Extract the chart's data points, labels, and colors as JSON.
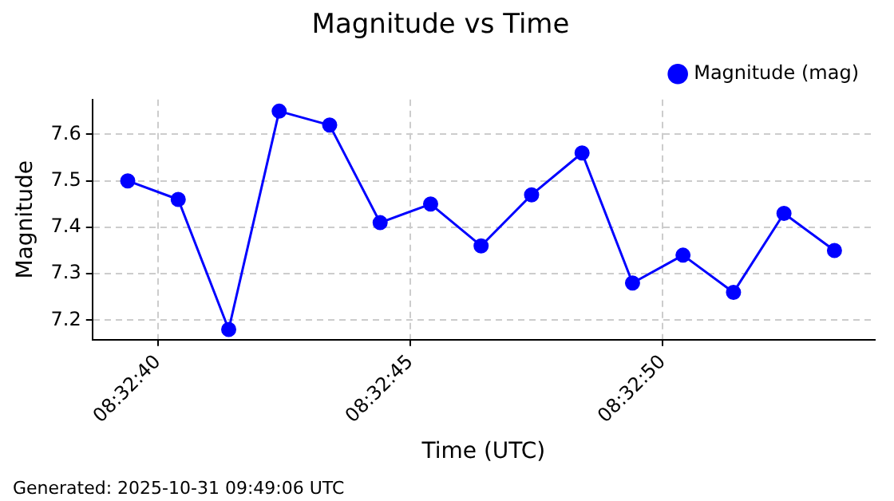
{
  "chart_data": {
    "type": "line",
    "title": "Magnitude vs Time",
    "xlabel": "Time (UTC)",
    "ylabel": "Magnitude",
    "x": [
      "2025-10-31T08:32:39.4",
      "2025-10-31T08:32:40.4",
      "2025-10-31T08:32:41.4",
      "2025-10-31T08:32:42.4",
      "2025-10-31T08:32:43.4",
      "2025-10-31T08:32:44.4",
      "2025-10-31T08:32:45.4",
      "2025-10-31T08:32:46.4",
      "2025-10-31T08:32:47.4",
      "2025-10-31T08:32:48.4",
      "2025-10-31T08:32:49.4",
      "2025-10-31T08:32:50.4",
      "2025-10-31T08:32:51.4",
      "2025-10-31T08:32:52.4",
      "2025-10-31T08:32:53.4"
    ],
    "series": [
      {
        "name": "Magnitude (mag)",
        "color": "#0000ff",
        "values": [
          7.5,
          7.46,
          7.18,
          7.65,
          7.62,
          7.41,
          7.45,
          7.36,
          7.47,
          7.56,
          7.28,
          7.34,
          7.26,
          7.43,
          7.35
        ]
      }
    ],
    "xlim": [
      "2025-10-31T08:32:38.7",
      "2025-10-31T08:32:54.2"
    ],
    "xticks": [
      {
        "value": "2025-10-31T08:32:40",
        "label": "08:32:40"
      },
      {
        "value": "2025-10-31T08:32:45",
        "label": "08:32:45"
      },
      {
        "value": "2025-10-31T08:32:50",
        "label": "08:32:50"
      }
    ],
    "ylim": [
      7.158,
      7.675
    ],
    "yticks": [
      7.2,
      7.3,
      7.4,
      7.5,
      7.6
    ],
    "grid": true,
    "legend": "top right",
    "marker": "circle",
    "line_style": "solid",
    "annotations": [
      "Generated: 2025-10-31 09:49:06 UTC"
    ]
  }
}
